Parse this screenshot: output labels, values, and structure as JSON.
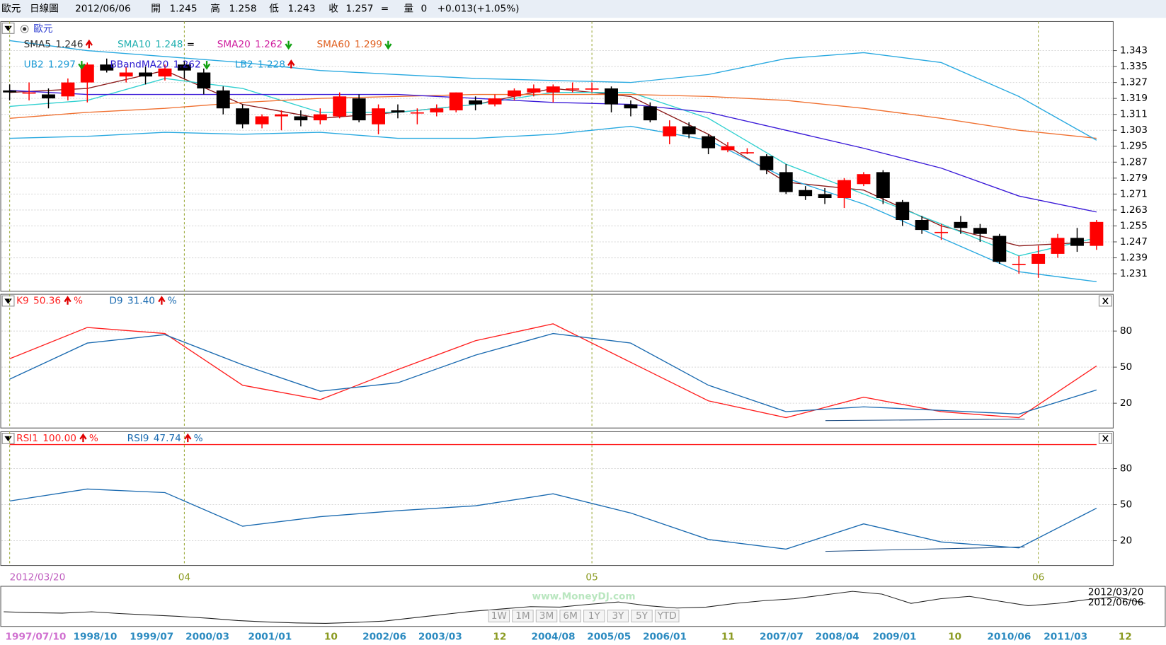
{
  "header": {
    "items": [
      "歐元",
      "日線圖",
      "2012/06/06",
      "開",
      "1.245",
      "高",
      "1.258",
      "低",
      "1.243",
      "收",
      "1.257",
      "=",
      "量",
      "0",
      "+0.013(+1.05%)"
    ]
  },
  "chart_data": [
    {
      "type": "candlestick",
      "title": "歐元",
      "candles": {
        "open": [
          1.323,
          1.322,
          1.321,
          1.32,
          1.327,
          1.336,
          1.33,
          1.332,
          1.33,
          1.336,
          1.332,
          1.323,
          1.314,
          1.306,
          1.31,
          1.31,
          1.308,
          1.31,
          1.319,
          1.306,
          1.313,
          1.312,
          1.312,
          1.313,
          1.318,
          1.316,
          1.32,
          1.322,
          1.322,
          1.324,
          1.324,
          1.324,
          1.316,
          1.315,
          1.3,
          1.305,
          1.3,
          1.293,
          1.292,
          1.29,
          1.282,
          1.273,
          1.271,
          1.269,
          1.276,
          1.282,
          1.267,
          1.258,
          1.252,
          1.257,
          1.254,
          1.25,
          1.236,
          1.236,
          1.241,
          1.249,
          1.245
        ],
        "high": [
          1.326,
          1.327,
          1.324,
          1.329,
          1.337,
          1.339,
          1.335,
          1.335,
          1.336,
          1.338,
          1.334,
          1.325,
          1.316,
          1.311,
          1.313,
          1.313,
          1.314,
          1.322,
          1.321,
          1.316,
          1.316,
          1.314,
          1.316,
          1.322,
          1.32,
          1.321,
          1.324,
          1.326,
          1.326,
          1.327,
          1.327,
          1.325,
          1.318,
          1.317,
          1.308,
          1.307,
          1.301,
          1.297,
          1.294,
          1.291,
          1.286,
          1.275,
          1.274,
          1.279,
          1.282,
          1.283,
          1.268,
          1.26,
          1.256,
          1.26,
          1.256,
          1.251,
          1.24,
          1.245,
          1.251,
          1.254,
          1.258
        ],
        "low": [
          1.318,
          1.318,
          1.314,
          1.318,
          1.317,
          1.332,
          1.327,
          1.326,
          1.328,
          1.329,
          1.321,
          1.311,
          1.304,
          1.304,
          1.303,
          1.305,
          1.306,
          1.309,
          1.307,
          1.301,
          1.309,
          1.306,
          1.31,
          1.312,
          1.313,
          1.315,
          1.318,
          1.32,
          1.317,
          1.322,
          1.322,
          1.312,
          1.31,
          1.307,
          1.296,
          1.299,
          1.291,
          1.292,
          1.291,
          1.281,
          1.271,
          1.268,
          1.266,
          1.264,
          1.275,
          1.266,
          1.255,
          1.251,
          1.248,
          1.251,
          1.247,
          1.236,
          1.231,
          1.229,
          1.239,
          1.242,
          1.243
        ],
        "close": [
          1.322,
          1.322,
          1.319,
          1.327,
          1.336,
          1.333,
          1.332,
          1.33,
          1.334,
          1.333,
          1.324,
          1.314,
          1.306,
          1.31,
          1.311,
          1.308,
          1.311,
          1.32,
          1.308,
          1.314,
          1.312,
          1.312,
          1.314,
          1.322,
          1.316,
          1.319,
          1.323,
          1.324,
          1.325,
          1.324,
          1.324,
          1.316,
          1.314,
          1.308,
          1.305,
          1.301,
          1.294,
          1.295,
          1.292,
          1.283,
          1.272,
          1.27,
          1.269,
          1.278,
          1.281,
          1.269,
          1.258,
          1.253,
          1.252,
          1.254,
          1.251,
          1.237,
          1.236,
          1.241,
          1.249,
          1.245,
          1.257
        ]
      },
      "up_color": "#ff0000",
      "down_color": "#000000",
      "ylim": [
        1.2222,
        1.3572
      ],
      "yticks": [
        1.343,
        1.335,
        1.327,
        1.319,
        1.311,
        1.303,
        1.295,
        1.287,
        1.279,
        1.271,
        1.263,
        1.255,
        1.247,
        1.239,
        1.231
      ],
      "grid": true,
      "x_ticks": [
        {
          "value": 0,
          "label": "2012/03/20"
        },
        {
          "value": 9,
          "label": "04"
        },
        {
          "value": 30,
          "label": "05"
        },
        {
          "value": 53,
          "label": "06"
        }
      ],
      "overlays": [
        {
          "name": "SMA5",
          "value_label": "1.246",
          "trend": "up",
          "color": "#8b1a1a",
          "text_color": "#333333",
          "x": [
            0,
            4,
            8,
            12,
            16,
            20,
            24,
            28,
            32,
            36,
            40,
            44,
            48,
            52,
            56
          ],
          "values": [
            1.322,
            1.324,
            1.333,
            1.316,
            1.309,
            1.312,
            1.316,
            1.324,
            1.32,
            1.301,
            1.277,
            1.273,
            1.255,
            1.245,
            1.247
          ]
        },
        {
          "name": "SMA10",
          "value_label": "1.248",
          "trend_label": "=",
          "color": "#30d0d0",
          "text_color": "#20b0b0",
          "x": [
            0,
            4,
            8,
            12,
            16,
            20,
            24,
            28,
            32,
            36,
            40,
            44,
            48,
            52,
            56
          ],
          "values": [
            1.315,
            1.318,
            1.329,
            1.324,
            1.312,
            1.312,
            1.316,
            1.322,
            1.322,
            1.309,
            1.286,
            1.271,
            1.256,
            1.24,
            1.249
          ]
        },
        {
          "name": "SMA20",
          "value_label": "1.262",
          "trend": "down",
          "color": "#d020a0",
          "text_color": "#d020a0"
        },
        {
          "name": "SMA60",
          "value_label": "1.299",
          "trend": "down",
          "color": "#f07030",
          "text_color": "#e06020",
          "x": [
            0,
            4,
            8,
            12,
            16,
            20,
            24,
            28,
            32,
            36,
            40,
            44,
            48,
            52,
            56
          ],
          "values": [
            1.309,
            1.312,
            1.314,
            1.317,
            1.319,
            1.32,
            1.321,
            1.321,
            1.321,
            1.32,
            1.318,
            1.314,
            1.309,
            1.303,
            1.299
          ]
        },
        {
          "name": "UB2",
          "value_label": "1.297",
          "trend": "down",
          "color": "#29a9e0",
          "text_color": "#1a9ad6",
          "x": [
            0,
            4,
            8,
            12,
            16,
            20,
            24,
            28,
            32,
            36,
            40,
            44,
            48,
            52,
            56
          ],
          "values": [
            1.348,
            1.343,
            1.34,
            1.337,
            1.333,
            1.331,
            1.329,
            1.328,
            1.327,
            1.331,
            1.339,
            1.342,
            1.337,
            1.32,
            1.298
          ]
        },
        {
          "name": "BBandMA20",
          "value_label": "1.262",
          "trend": "down",
          "color": "#3a1ad8",
          "text_color": "#2a1ad0",
          "x": [
            0,
            4,
            8,
            12,
            16,
            20,
            24,
            28,
            32,
            36,
            40,
            44,
            48,
            52,
            56
          ],
          "values": [
            1.323,
            1.321,
            1.321,
            1.321,
            1.321,
            1.321,
            1.319,
            1.317,
            1.316,
            1.312,
            1.303,
            1.294,
            1.284,
            1.27,
            1.262
          ]
        },
        {
          "name": "LB2",
          "value_label": "1.228",
          "trend": "up",
          "color": "#29a9e0",
          "text_color": "#1a9ad6",
          "x": [
            0,
            4,
            8,
            12,
            16,
            20,
            24,
            28,
            32,
            36,
            40,
            44,
            48,
            52,
            56
          ],
          "values": [
            1.299,
            1.3,
            1.302,
            1.301,
            1.302,
            1.299,
            1.299,
            1.301,
            1.305,
            1.298,
            1.279,
            1.266,
            1.249,
            1.232,
            1.227
          ]
        }
      ]
    },
    {
      "type": "line",
      "ylim": [
        0,
        110
      ],
      "yticks": [
        80,
        50,
        20
      ],
      "grid": true,
      "series": [
        {
          "name": "K9",
          "value_label": "50.36",
          "trend": "up",
          "unit": "%",
          "color": "#ff2020",
          "x": [
            0,
            4,
            8,
            12,
            16,
            20,
            24,
            28,
            32,
            36,
            40,
            44,
            48,
            52,
            56
          ],
          "values": [
            57,
            83,
            78,
            35,
            23,
            48,
            72,
            86,
            54,
            22,
            8,
            25,
            13,
            8,
            51
          ]
        },
        {
          "name": "D9",
          "value_label": "31.40",
          "trend": "up",
          "unit": "%",
          "color": "#1a6ab0",
          "x": [
            0,
            4,
            8,
            12,
            16,
            20,
            24,
            28,
            32,
            36,
            40,
            44,
            48,
            52,
            56
          ],
          "values": [
            40,
            70,
            77,
            52,
            30,
            37,
            60,
            78,
            70,
            35,
            13,
            17,
            14,
            11,
            31
          ]
        }
      ]
    },
    {
      "type": "line",
      "ylim": [
        0,
        110
      ],
      "yticks": [
        80,
        50,
        20
      ],
      "grid": true,
      "series": [
        {
          "name": "RSI1",
          "value_label": "100.00",
          "trend": "up",
          "unit": "%",
          "color": "#ff2020",
          "x": [
            0,
            56
          ],
          "values": [
            100,
            100
          ]
        },
        {
          "name": "RSI9",
          "value_label": "47.74",
          "trend": "up",
          "unit": "%",
          "color": "#1a6ab0",
          "x": [
            0,
            4,
            8,
            12,
            16,
            20,
            24,
            28,
            32,
            36,
            40,
            44,
            48,
            52,
            56
          ],
          "values": [
            53,
            63,
            60,
            32,
            40,
            45,
            49,
            59,
            43,
            21,
            13,
            34,
            19,
            14,
            47
          ]
        }
      ]
    },
    {
      "type": "navigator",
      "ylim": [
        0.82,
        1.62
      ],
      "color": "#222222",
      "values": [
        1.12,
        1.1,
        1.09,
        1.12,
        1.08,
        1.05,
        1.02,
        0.98,
        0.93,
        0.9,
        0.88,
        0.87,
        0.89,
        0.92,
        0.99,
        1.06,
        1.13,
        1.18,
        1.23,
        1.22,
        1.28,
        1.33,
        1.25,
        1.2,
        1.22,
        1.3,
        1.36,
        1.4,
        1.48,
        1.56,
        1.5,
        1.3,
        1.4,
        1.45,
        1.35,
        1.25,
        1.3,
        1.38,
        1.44,
        1.3
      ],
      "x_labels": [
        "1997/07/10",
        "1998/10",
        "1999/07",
        "2000/03",
        "2001/01",
        "10",
        "2002/06",
        "2003/03",
        "12",
        "2004/08",
        "2005/05",
        "2006/01",
        "11",
        "2007/07",
        "2008/04",
        "2009/01",
        "10",
        "2010/06",
        "2011/03",
        "12"
      ],
      "watermark": "www.MoneyDJ.com",
      "buttons": [
        "1W",
        "1M",
        "3M",
        "6M",
        "1Y",
        "3Y",
        "5Y",
        "YTD"
      ],
      "range_labels": [
        "2012/03/20",
        "2012/06/06"
      ]
    }
  ]
}
